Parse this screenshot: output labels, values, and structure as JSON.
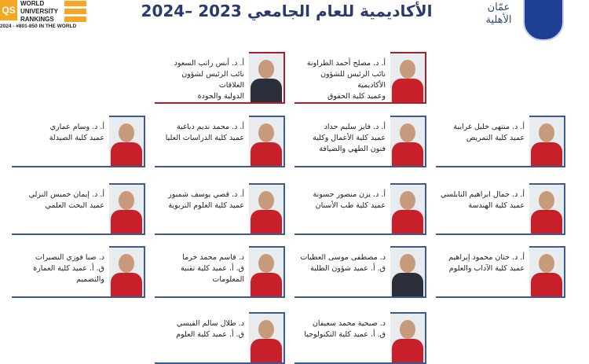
{
  "qs": {
    "logo": "QS",
    "lines": [
      "WORLD",
      "UNIVERSITY",
      "RANKINGS"
    ],
    "rank": "2024 - #801-850 IN THE WORLD"
  },
  "title": {
    "line1": "",
    "line2": "الأكاديمية للعام الجامعي 2023 –2024"
  },
  "logo": {
    "text": "عمّان الأهلية"
  },
  "colors": {
    "title": "#283a6e",
    "frame_blue": "#3b5c8f",
    "frame_red": "#a3222e"
  },
  "cards": [
    {
      "row": 0,
      "col": 1,
      "accent": "red",
      "lines": [
        "أ. د. مصلح أحمد الطراونة",
        "نائب الرئيس للشؤون",
        "الأكاديمية",
        "وعميد كلية الحقوق"
      ]
    },
    {
      "row": 0,
      "col": 2,
      "accent": "red",
      "lines": [
        "أ. د. أنس راتب السعود",
        "نائب الرئيس لشؤون العلاقات",
        "الدولية والجودة"
      ]
    },
    {
      "row": 1,
      "col": 0,
      "accent": "blue",
      "lines": [
        "أ. د. منتهى خليل غرايبة",
        "عميد كلية التمريض"
      ]
    },
    {
      "row": 1,
      "col": 1,
      "accent": "blue",
      "lines": [
        "أ. د. فايز سليم حداد",
        "عميد كلية الأعمال وكلية",
        "فنون الطهي والضيافة"
      ]
    },
    {
      "row": 1,
      "col": 2,
      "accent": "blue",
      "lines": [
        "أ. د. محمد نديم دباغية",
        "عميد كلية الدراسات العليا"
      ]
    },
    {
      "row": 1,
      "col": 3,
      "accent": "blue",
      "lines": [
        "أ. د. وسام عماري",
        "عميد كلية الصيدلة"
      ]
    },
    {
      "row": 2,
      "col": 0,
      "accent": "blue",
      "lines": [
        "أ. د. جمال ابراهيم النابلسي",
        "عميد كلية الهندسة"
      ]
    },
    {
      "row": 2,
      "col": 1,
      "accent": "blue",
      "lines": [
        "أ. د. يزن منصور حسونة",
        "عميد كلية طب الأسنان"
      ]
    },
    {
      "row": 2,
      "col": 2,
      "accent": "blue",
      "lines": [
        "أ. د. قصي يوسف شمبور",
        "عميد كلية العلوم التربوية"
      ]
    },
    {
      "row": 2,
      "col": 3,
      "accent": "blue",
      "lines": [
        "أ. د. إيمان خميس النزلي",
        "عميد البحث العلمي"
      ]
    },
    {
      "row": 3,
      "col": 0,
      "accent": "blue",
      "lines": [
        "أ. د. حنان محمود إبراهيم",
        "عميد كلية الآداب والعلوم"
      ]
    },
    {
      "row": 3,
      "col": 1,
      "accent": "blue",
      "lines": [
        "د. مصطفى موسى العطيات",
        "ق. أ. عميد شؤون الطلبة"
      ]
    },
    {
      "row": 3,
      "col": 2,
      "accent": "blue",
      "lines": [
        "د. قاسم محمد خرما",
        "ق. أ. عميد كلية تقنية",
        "المعلومات"
      ]
    },
    {
      "row": 3,
      "col": 3,
      "accent": "blue",
      "lines": [
        "د. صبا فوزي النصيرات",
        "ق. أ. عميد كلية العمارة",
        "والتصميم"
      ]
    },
    {
      "row": 4,
      "col": 1,
      "accent": "blue",
      "lines": [
        "د. صبحية محمد سعيفان",
        "ق. أ. عميد كلية التكنولوجيا"
      ]
    },
    {
      "row": 4,
      "col": 2,
      "accent": "blue",
      "lines": [
        "د. طلال سالم القيسي",
        "ق. أ. عميد كلية العلوم"
      ]
    }
  ]
}
